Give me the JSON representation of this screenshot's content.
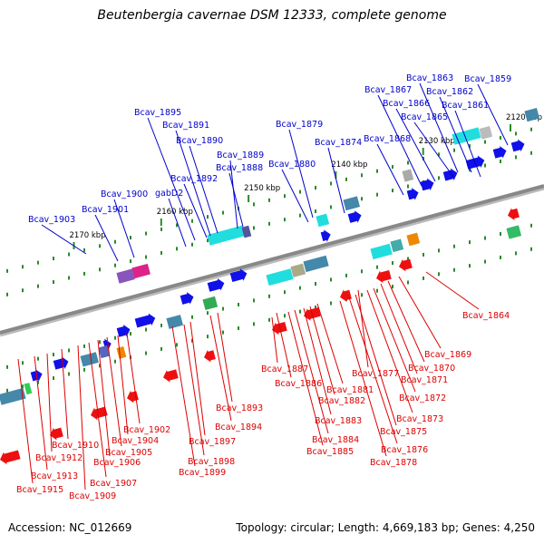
{
  "title": "Beutenbergia cavernae DSM 12333, complete genome",
  "accession": "Accession: NC_012669",
  "topology": "Topology: circular; Length: 4,669,183 bp; Genes: 4,250",
  "ticks": [
    {
      "label": "2120 kbp",
      "kbp": 2120
    },
    {
      "label": "2130 kbp",
      "kbp": 2130
    },
    {
      "label": "2140 kbp",
      "kbp": 2140
    },
    {
      "label": "2150 kbp",
      "kbp": 2150
    },
    {
      "label": "2160 kbp",
      "kbp": 2160
    },
    {
      "label": "2170 kbp",
      "kbp": 2170
    }
  ],
  "colors": {
    "forward_label": "#0000cc",
    "reverse_label": "#dd0000",
    "forward_gene": "#1010e8",
    "reverse_gene": "#ee1010",
    "backbone": "#888888",
    "tick": "#2a8a2a"
  },
  "genes_top": [
    "Bcav_1859",
    "Bcav_1861",
    "Bcav_1862",
    "Bcav_1863",
    "Bcav_1865",
    "Bcav_1866",
    "Bcav_1867",
    "Bcav_1868",
    "Bcav_1874",
    "Bcav_1879",
    "Bcav_1880",
    "Bcav_1888",
    "Bcav_1889",
    "Bcav_1890",
    "Bcav_1891",
    "Bcav_1892",
    "Bcav_1895",
    "gabD2",
    "Bcav_1900",
    "Bcav_1901",
    "Bcav_1903"
  ],
  "genes_bottom": [
    "Bcav_1864",
    "Bcav_1869",
    "Bcav_1870",
    "Bcav_1871",
    "Bcav_1872",
    "Bcav_1873",
    "Bcav_1875",
    "Bcav_1876",
    "Bcav_1877",
    "Bcav_1878",
    "Bcav_1881",
    "Bcav_1882",
    "Bcav_1883",
    "Bcav_1884",
    "Bcav_1885",
    "Bcav_1886",
    "Bcav_1887",
    "Bcav_1893",
    "Bcav_1894",
    "Bcav_1897",
    "Bcav_1898",
    "Bcav_1899",
    "Bcav_1902",
    "Bcav_1904",
    "Bcav_1905",
    "Bcav_1906",
    "Bcav_1907",
    "Bcav_1909",
    "Bcav_1910",
    "Bcav_1912",
    "Bcav_1913",
    "Bcav_1915"
  ]
}
